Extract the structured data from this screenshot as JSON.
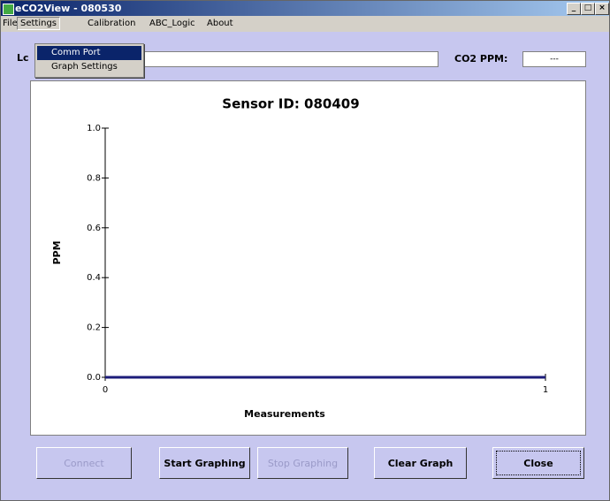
{
  "window": {
    "title": "eCO2View - 080530",
    "menu": [
      "File",
      "Settings",
      "Calibration",
      "ABC_Logic",
      "About"
    ],
    "dropdown": [
      "Comm Port",
      "Graph Settings"
    ],
    "location_label": "Lc",
    "co2_label": "CO2 PPM:",
    "co2_value": "---",
    "buttons": [
      "Connect",
      "Start Graphing",
      "Stop Graphing",
      "Clear Graph",
      "Close"
    ]
  },
  "chart_data": {
    "type": "line",
    "title": "Sensor ID: 080409",
    "x_label": "Measurements",
    "y_label": "PPM",
    "x": [
      0,
      1
    ],
    "series": [
      {
        "color": "#1c1c7a",
        "values": [
          0,
          0
        ]
      }
    ],
    "xlim": [
      0,
      1
    ],
    "xticks": [
      0,
      1
    ],
    "ylim": [
      0,
      1
    ],
    "yticks": [
      {
        "value": 0,
        "label": "0.0"
      },
      0.2,
      0.4,
      0.6,
      0.8,
      {
        "value": 1,
        "label": "1.0"
      }
    ]
  }
}
